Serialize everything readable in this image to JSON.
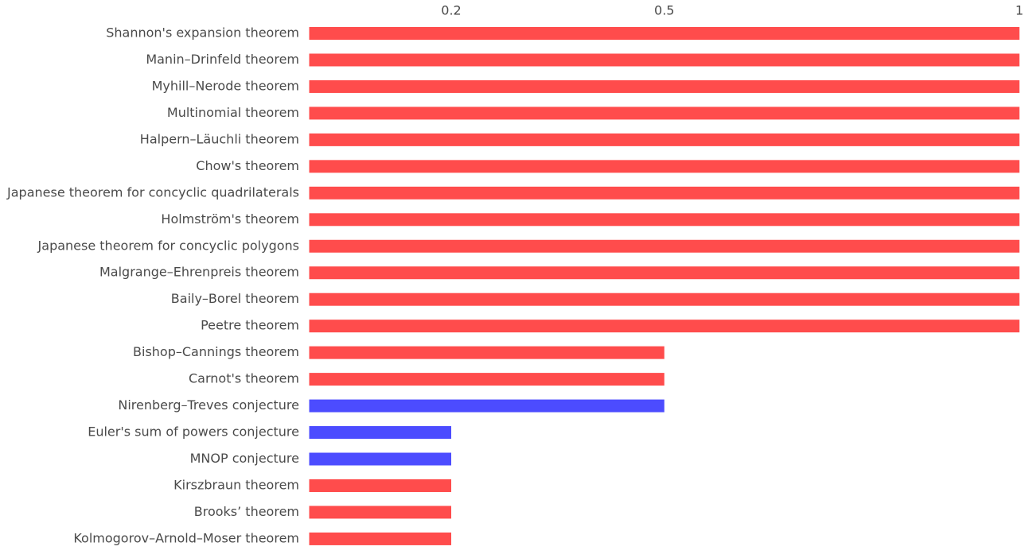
{
  "chart_data": {
    "type": "barh",
    "categories": [
      "Shannon's expansion theorem",
      "Manin–Drinfeld theorem",
      "Myhill–Nerode theorem",
      "Multinomial theorem",
      "Halpern–Läuchli theorem",
      "Chow's theorem",
      "Japanese theorem for concyclic quadrilaterals",
      "Holmström's theorem",
      "Japanese theorem for concyclic polygons",
      "Malgrange–Ehrenpreis theorem",
      "Baily–Borel theorem",
      "Peetre theorem",
      "Bishop–Cannings theorem",
      "Carnot's theorem",
      "Nirenberg–Treves conjecture",
      "Euler's sum of powers conjecture",
      "MNOP conjecture",
      "Kirszbraun theorem",
      "Brooks’ theorem",
      "Kolmogorov–Arnold–Moser theorem"
    ],
    "values": [
      1,
      1,
      1,
      1,
      1,
      1,
      1,
      1,
      1,
      1,
      1,
      1,
      0.5,
      0.5,
      0.5,
      0.2,
      0.2,
      0.2,
      0.2,
      0.2
    ],
    "colors": [
      "#ff4c4c",
      "#ff4c4c",
      "#ff4c4c",
      "#ff4c4c",
      "#ff4c4c",
      "#ff4c4c",
      "#ff4c4c",
      "#ff4c4c",
      "#ff4c4c",
      "#ff4c4c",
      "#ff4c4c",
      "#ff4c4c",
      "#ff4c4c",
      "#ff4c4c",
      "#4c4cff",
      "#4c4cff",
      "#4c4cff",
      "#ff4c4c",
      "#ff4c4c",
      "#ff4c4c"
    ],
    "xlim": [
      0,
      1
    ],
    "xticks": [
      0.2,
      0.5,
      1
    ],
    "grid": false
  }
}
